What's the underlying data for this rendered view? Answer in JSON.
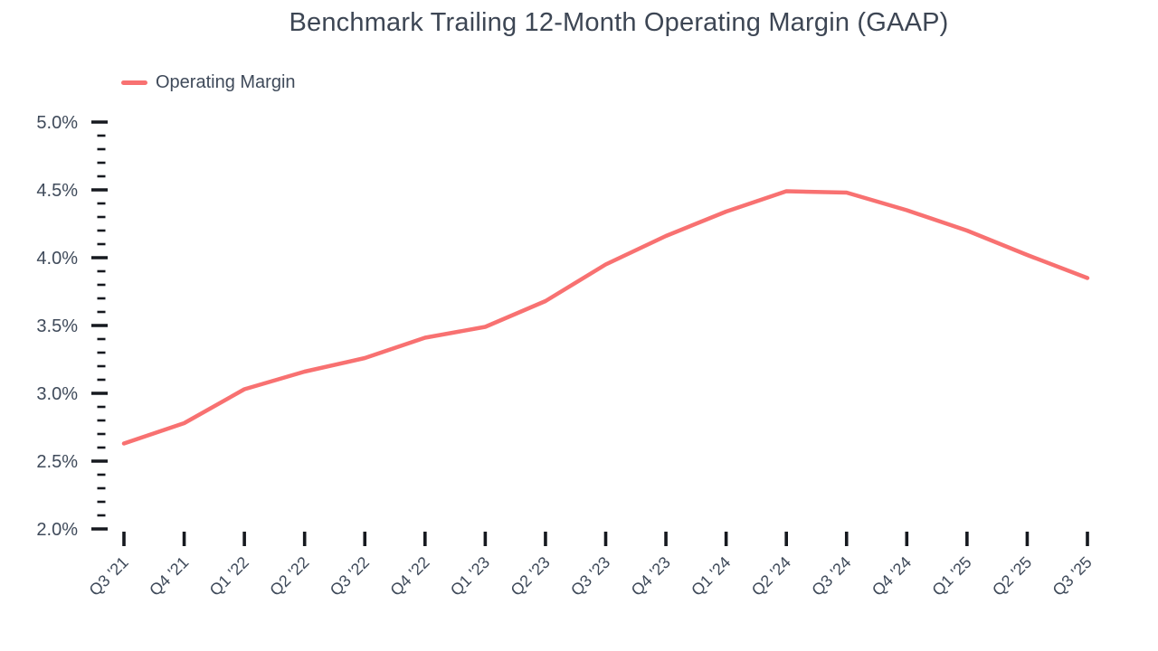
{
  "title": "Benchmark Trailing 12-Month Operating Margin (GAAP)",
  "legend": {
    "label": "Operating Margin",
    "color": "#f87171"
  },
  "colors": {
    "accent": "#f87171",
    "text": "#3f4a5a",
    "tick": "#16191f",
    "background": "#ffffff"
  },
  "chart_data": {
    "type": "line",
    "title": "Benchmark Trailing 12-Month Operating Margin (GAAP)",
    "categories": [
      "Q3 '21",
      "Q4 '21",
      "Q1 '22",
      "Q2 '22",
      "Q3 '22",
      "Q4 '22",
      "Q1 '23",
      "Q2 '23",
      "Q3 '23",
      "Q4 '23",
      "Q1 '24",
      "Q2 '24",
      "Q3 '24",
      "Q4 '24",
      "Q1 '25",
      "Q2 '25",
      "Q3 '25"
    ],
    "series": [
      {
        "name": "Operating Margin",
        "color": "#f87171",
        "values": [
          2.63,
          2.78,
          3.03,
          3.16,
          3.26,
          3.41,
          3.49,
          3.68,
          3.95,
          4.16,
          4.34,
          4.49,
          4.48,
          4.35,
          4.2,
          4.02,
          3.85
        ]
      }
    ],
    "xlabel": "",
    "ylabel": "",
    "ylim": [
      2.0,
      5.0
    ],
    "ytick_step": 0.5,
    "ytick_minor_step": 0.1,
    "ytick_labels": [
      "2.0%",
      "2.5%",
      "3.0%",
      "3.5%",
      "4.0%",
      "4.5%",
      "5.0%"
    ],
    "grid": false,
    "legend_position": "top-left"
  }
}
